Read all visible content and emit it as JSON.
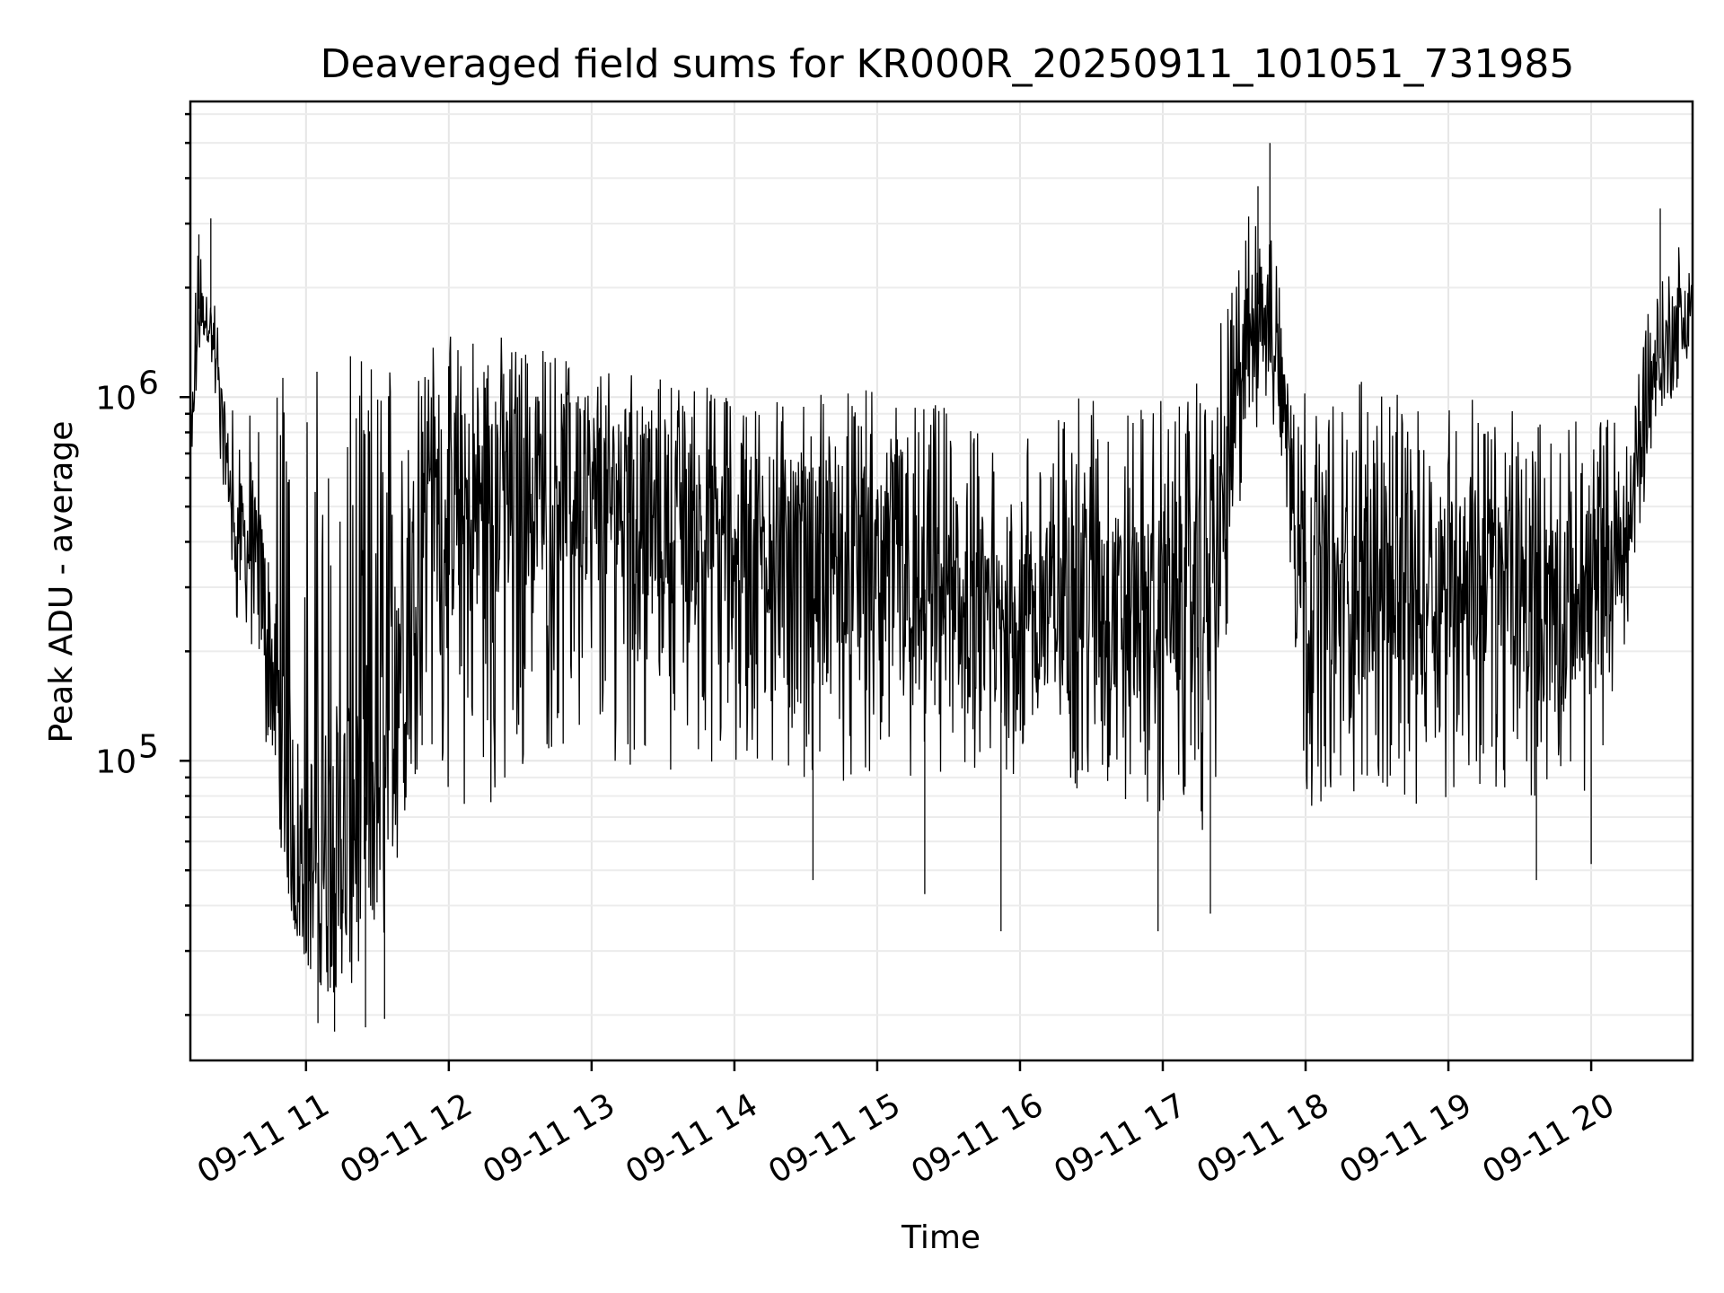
{
  "chart_data": {
    "type": "line",
    "title": "Deaveraged field sums for KR000R_20250911_101051_731985",
    "xlabel": "Time",
    "ylabel": "Peak ADU - average",
    "yscale": "log",
    "ylim": [
      15000,
      6500000
    ],
    "xlim": [
      "2025-09-11 10:11:24",
      "2025-09-11 20:42:36"
    ],
    "grid": true,
    "legend": "none",
    "line_color": "#000000",
    "x_ticks": [
      {
        "label": "09-11 11",
        "time": "2025-09-11 11:00"
      },
      {
        "label": "09-11 12",
        "time": "2025-09-11 12:00"
      },
      {
        "label": "09-11 13",
        "time": "2025-09-11 13:00"
      },
      {
        "label": "09-11 14",
        "time": "2025-09-11 14:00"
      },
      {
        "label": "09-11 15",
        "time": "2025-09-11 15:00"
      },
      {
        "label": "09-11 16",
        "time": "2025-09-11 16:00"
      },
      {
        "label": "09-11 17",
        "time": "2025-09-11 17:00"
      },
      {
        "label": "09-11 18",
        "time": "2025-09-11 18:00"
      },
      {
        "label": "09-11 19",
        "time": "2025-09-11 19:00"
      },
      {
        "label": "09-11 20",
        "time": "2025-09-11 20:00"
      }
    ],
    "y_ticks": [
      {
        "label": "10",
        "exp": "5",
        "value": 100000
      },
      {
        "label": "10",
        "exp": "6",
        "value": 1000000
      }
    ],
    "envelope": {
      "time": [
        "10:11",
        "10:15",
        "10:20",
        "10:30",
        "10:40",
        "10:45",
        "10:50",
        "10:55",
        "11:00",
        "11:10",
        "11:20",
        "11:30",
        "11:40",
        "11:50",
        "12:00",
        "12:15",
        "12:30",
        "12:45",
        "13:00",
        "13:30",
        "14:00",
        "14:30",
        "15:00",
        "15:30",
        "15:45",
        "15:55",
        "16:15",
        "16:30",
        "16:45",
        "17:00",
        "17:20",
        "17:35",
        "17:40",
        "17:45",
        "17:50",
        "18:00",
        "18:10",
        "18:30",
        "18:45",
        "19:00",
        "19:15",
        "19:30",
        "19:45",
        "20:00",
        "20:15",
        "20:25",
        "20:35",
        "20:42"
      ],
      "high": [
        1100000,
        2800000,
        2200000,
        950000,
        900000,
        1400000,
        1500000,
        1200000,
        1200000,
        1300000,
        1300000,
        1350000,
        1450000,
        1550000,
        1500000,
        1550000,
        1450000,
        1350000,
        1300000,
        1150000,
        1050000,
        1050000,
        1050000,
        950000,
        800000,
        750000,
        900000,
        1050000,
        950000,
        1000000,
        1200000,
        3200000,
        3800000,
        2800000,
        2400000,
        1050000,
        950000,
        1300000,
        900000,
        1050000,
        1000000,
        900000,
        850000,
        900000,
        1000000,
        2000000,
        2600000,
        2800000
      ],
      "low": [
        450000,
        1300000,
        1200000,
        250000,
        150000,
        90000,
        55000,
        35000,
        28000,
        22000,
        22000,
        25000,
        50000,
        120000,
        80000,
        65000,
        90000,
        110000,
        100000,
        95000,
        90000,
        90000,
        85000,
        85000,
        80000,
        90000,
        80000,
        85000,
        70000,
        70000,
        60000,
        700000,
        800000,
        900000,
        600000,
        75000,
        75000,
        80000,
        70000,
        80000,
        80000,
        80000,
        80000,
        80000,
        200000,
        700000,
        1000000,
        1100000
      ],
      "center": [
        650000,
        1750000,
        1600000,
        450000,
        350000,
        200000,
        110000,
        60000,
        50000,
        55000,
        70000,
        90000,
        220000,
        550000,
        450000,
        500000,
        550000,
        600000,
        550000,
        480000,
        420000,
        380000,
        330000,
        280000,
        220000,
        240000,
        280000,
        300000,
        260000,
        280000,
        300000,
        1400000,
        1800000,
        1500000,
        1200000,
        300000,
        280000,
        320000,
        280000,
        330000,
        320000,
        290000,
        270000,
        300000,
        420000,
        1100000,
        1600000,
        1700000
      ]
    },
    "spike_lows": [
      {
        "time": "11:05",
        "value": 19000
      },
      {
        "time": "11:12",
        "value": 18000
      },
      {
        "time": "11:25",
        "value": 18500
      },
      {
        "time": "11:33",
        "value": 19500
      },
      {
        "time": "15:52",
        "value": 34000
      },
      {
        "time": "16:58",
        "value": 34000
      },
      {
        "time": "17:20",
        "value": 38000
      },
      {
        "time": "14:33",
        "value": 47000
      },
      {
        "time": "15:20",
        "value": 43000
      },
      {
        "time": "19:37",
        "value": 47000
      },
      {
        "time": "20:00",
        "value": 52000
      }
    ],
    "spike_highs": [
      {
        "time": "17:45",
        "value": 5000000
      },
      {
        "time": "17:40",
        "value": 3800000
      },
      {
        "time": "20:29",
        "value": 3300000
      },
      {
        "time": "10:20",
        "value": 3100000
      },
      {
        "time": "10:15",
        "value": 2800000
      }
    ]
  }
}
